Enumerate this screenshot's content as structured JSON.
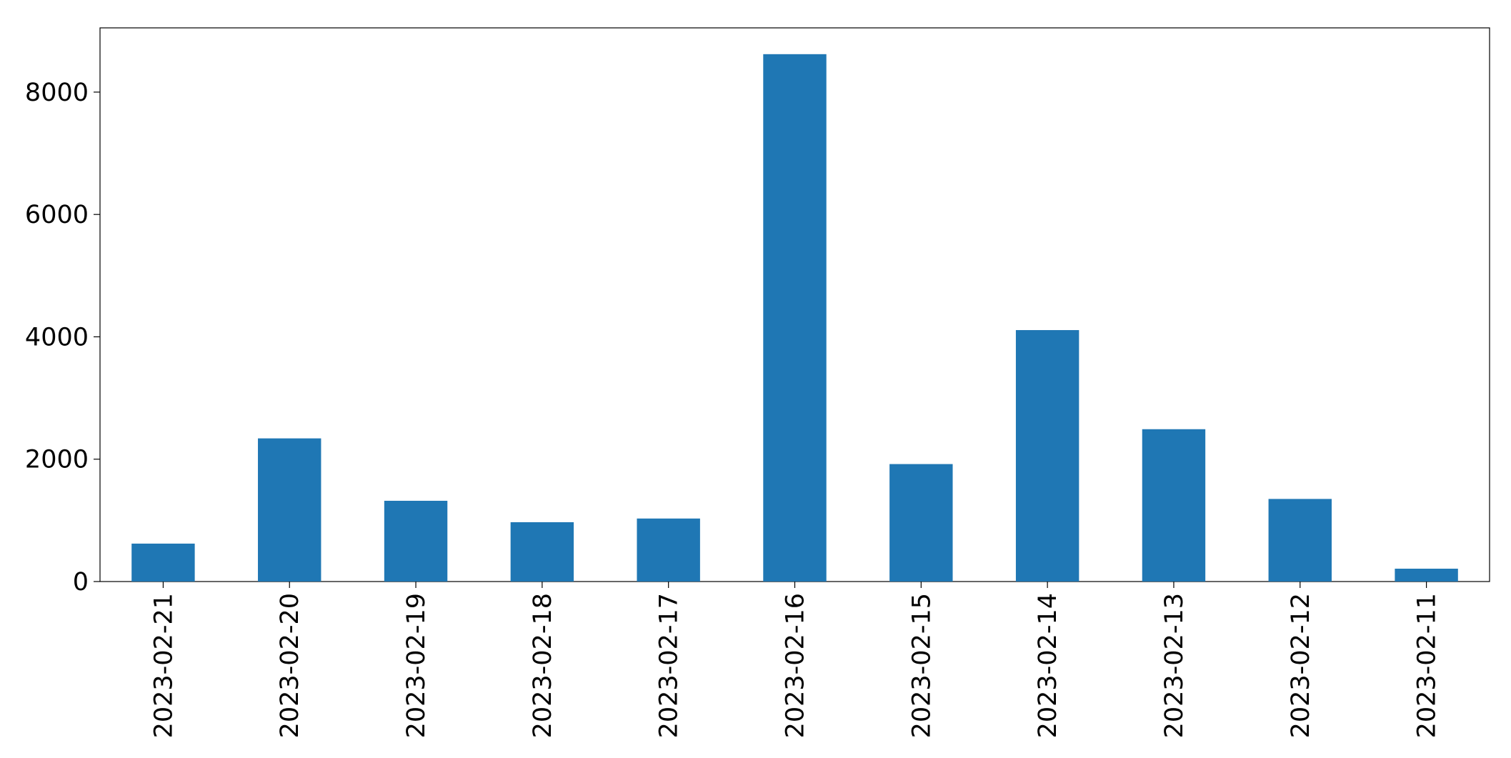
{
  "chart_data": {
    "type": "bar",
    "categories": [
      "2023-02-21",
      "2023-02-20",
      "2023-02-19",
      "2023-02-18",
      "2023-02-17",
      "2023-02-16",
      "2023-02-15",
      "2023-02-14",
      "2023-02-13",
      "2023-02-12",
      "2023-02-11"
    ],
    "values": [
      620,
      2340,
      1320,
      970,
      1030,
      8620,
      1920,
      4110,
      2490,
      1350,
      210
    ],
    "color": "#1f77b4",
    "ylim": [
      0,
      9050
    ],
    "yticks": [
      0,
      2000,
      4000,
      6000,
      8000
    ],
    "grid": false
  }
}
